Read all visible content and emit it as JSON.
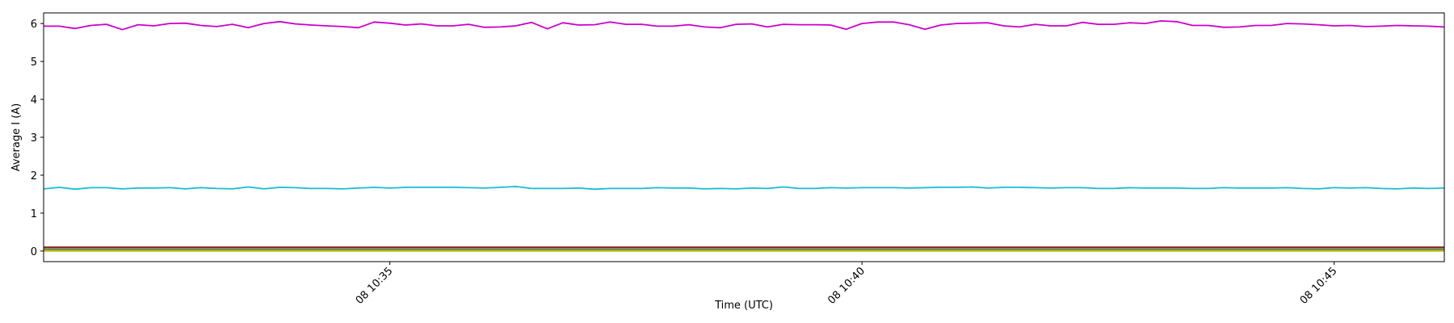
{
  "chart_data": {
    "type": "line",
    "title": "",
    "xlabel": "Time (UTC)",
    "ylabel": "Average I (A)",
    "xlim": [
      "08 10:31:20",
      "08 10:46:10"
    ],
    "ylim": [
      -0.28,
      6.28
    ],
    "grid": false,
    "legend": "none",
    "x": [
      "08 10:31:20",
      "08 10:31:30",
      "08 10:31:40",
      "08 10:31:50",
      "08 10:32:00",
      "08 10:32:10",
      "08 10:32:20",
      "08 10:32:30",
      "08 10:32:40",
      "08 10:32:50",
      "08 10:33:00",
      "08 10:33:10",
      "08 10:33:20",
      "08 10:33:30",
      "08 10:33:40",
      "08 10:33:50",
      "08 10:34:00",
      "08 10:34:10",
      "08 10:34:20",
      "08 10:34:30",
      "08 10:34:40",
      "08 10:34:50",
      "08 10:35:00",
      "08 10:35:10",
      "08 10:35:20",
      "08 10:35:30",
      "08 10:35:40",
      "08 10:35:50",
      "08 10:36:00",
      "08 10:36:10",
      "08 10:36:20",
      "08 10:36:30",
      "08 10:36:40",
      "08 10:36:50",
      "08 10:37:00",
      "08 10:37:10",
      "08 10:37:20",
      "08 10:37:30",
      "08 10:37:40",
      "08 10:37:50",
      "08 10:38:00",
      "08 10:38:10",
      "08 10:38:20",
      "08 10:38:30",
      "08 10:38:40",
      "08 10:38:50",
      "08 10:39:00",
      "08 10:39:10",
      "08 10:39:20",
      "08 10:39:30",
      "08 10:39:40",
      "08 10:39:50",
      "08 10:40:00",
      "08 10:40:10",
      "08 10:40:20",
      "08 10:40:30",
      "08 10:40:40",
      "08 10:40:50",
      "08 10:41:00",
      "08 10:41:10",
      "08 10:41:20",
      "08 10:41:30",
      "08 10:41:40",
      "08 10:41:50",
      "08 10:42:00",
      "08 10:42:10",
      "08 10:42:20",
      "08 10:42:30",
      "08 10:42:40",
      "08 10:42:50",
      "08 10:43:00",
      "08 10:43:10",
      "08 10:43:20",
      "08 10:43:30",
      "08 10:43:40",
      "08 10:43:50",
      "08 10:44:00",
      "08 10:44:10",
      "08 10:44:20",
      "08 10:44:30",
      "08 10:44:40",
      "08 10:44:50",
      "08 10:45:00",
      "08 10:45:10",
      "08 10:45:20",
      "08 10:45:30",
      "08 10:45:40",
      "08 10:45:50",
      "08 10:46:00",
      "08 10:46:10"
    ],
    "xticks": [
      {
        "label": "08 10:35",
        "value": "08 10:35:00"
      },
      {
        "label": "08 10:40",
        "value": "08 10:40:00"
      },
      {
        "label": "08 10:45",
        "value": "08 10:45:00"
      }
    ],
    "yticks": [
      0,
      1,
      2,
      3,
      4,
      5,
      6
    ],
    "series": [
      {
        "color": "#cc00cc",
        "values": [
          5.93,
          5.93,
          5.87,
          5.95,
          5.98,
          5.84,
          5.97,
          5.94,
          6.0,
          6.01,
          5.95,
          5.92,
          5.98,
          5.89,
          6.0,
          6.05,
          5.99,
          5.96,
          5.94,
          5.92,
          5.89,
          6.04,
          6.01,
          5.96,
          5.99,
          5.94,
          5.94,
          5.98,
          5.9,
          5.91,
          5.94,
          6.03,
          5.86,
          6.02,
          5.96,
          5.97,
          6.04,
          5.98,
          5.98,
          5.93,
          5.93,
          5.97,
          5.91,
          5.89,
          5.98,
          5.99,
          5.91,
          5.98,
          5.97,
          5.97,
          5.96,
          5.85,
          6.0,
          6.04,
          6.04,
          5.97,
          5.85,
          5.96,
          6.0,
          6.01,
          6.02,
          5.94,
          5.91,
          5.98,
          5.94,
          5.94,
          6.03,
          5.98,
          5.98,
          6.02,
          6.0,
          6.07,
          6.05,
          5.95,
          5.95,
          5.9,
          5.91,
          5.95,
          5.95,
          6.0,
          5.99,
          5.97,
          5.94,
          5.95,
          5.92,
          5.93,
          5.95,
          5.94,
          5.93,
          5.91
        ]
      },
      {
        "color": "#17becf",
        "values": [
          1.64,
          1.68,
          1.63,
          1.67,
          1.67,
          1.64,
          1.66,
          1.66,
          1.67,
          1.64,
          1.67,
          1.65,
          1.64,
          1.69,
          1.64,
          1.68,
          1.67,
          1.65,
          1.65,
          1.64,
          1.66,
          1.68,
          1.66,
          1.68,
          1.68,
          1.68,
          1.68,
          1.67,
          1.66,
          1.68,
          1.7,
          1.65,
          1.65,
          1.65,
          1.66,
          1.63,
          1.65,
          1.65,
          1.65,
          1.67,
          1.66,
          1.66,
          1.64,
          1.65,
          1.64,
          1.66,
          1.65,
          1.69,
          1.65,
          1.65,
          1.67,
          1.66,
          1.67,
          1.67,
          1.67,
          1.66,
          1.67,
          1.68,
          1.68,
          1.69,
          1.66,
          1.68,
          1.68,
          1.67,
          1.66,
          1.67,
          1.67,
          1.65,
          1.65,
          1.67,
          1.66,
          1.66,
          1.66,
          1.65,
          1.65,
          1.67,
          1.66,
          1.66,
          1.66,
          1.67,
          1.65,
          1.64,
          1.67,
          1.66,
          1.67,
          1.65,
          1.64,
          1.66,
          1.65,
          1.66
        ]
      },
      {
        "color": "#8c1a1a",
        "values": [
          0.1,
          0.1,
          0.1,
          0.1,
          0.1,
          0.1,
          0.1,
          0.1,
          0.1,
          0.1,
          0.1,
          0.1,
          0.1,
          0.1,
          0.1,
          0.1,
          0.1,
          0.1,
          0.1,
          0.1,
          0.1,
          0.1,
          0.1,
          0.1,
          0.1,
          0.1,
          0.1,
          0.1,
          0.1,
          0.1,
          0.1,
          0.1,
          0.1,
          0.1,
          0.1,
          0.1,
          0.1,
          0.1,
          0.1,
          0.1,
          0.1,
          0.1,
          0.1,
          0.1,
          0.1,
          0.1,
          0.1,
          0.1,
          0.1,
          0.1,
          0.1,
          0.1,
          0.1,
          0.1,
          0.1,
          0.1,
          0.1,
          0.1,
          0.1,
          0.1,
          0.1,
          0.1,
          0.1,
          0.1,
          0.1,
          0.1,
          0.1,
          0.1,
          0.1,
          0.1,
          0.1,
          0.1,
          0.1,
          0.1,
          0.1,
          0.1,
          0.1,
          0.1,
          0.1,
          0.1,
          0.1,
          0.1,
          0.1,
          0.1,
          0.1,
          0.1,
          0.1,
          0.1,
          0.1,
          0.1
        ]
      },
      {
        "color": "#7f7f7f",
        "values": [
          0.06,
          0.06,
          0.06,
          0.06,
          0.06,
          0.06,
          0.06,
          0.06,
          0.06,
          0.06,
          0.06,
          0.06,
          0.06,
          0.06,
          0.06,
          0.06,
          0.06,
          0.06,
          0.06,
          0.06,
          0.06,
          0.06,
          0.06,
          0.06,
          0.06,
          0.06,
          0.06,
          0.06,
          0.06,
          0.06,
          0.06,
          0.06,
          0.06,
          0.06,
          0.06,
          0.06,
          0.06,
          0.06,
          0.06,
          0.06,
          0.06,
          0.06,
          0.06,
          0.06,
          0.06,
          0.06,
          0.06,
          0.06,
          0.06,
          0.06,
          0.06,
          0.06,
          0.06,
          0.06,
          0.06,
          0.06,
          0.06,
          0.06,
          0.06,
          0.06,
          0.06,
          0.06,
          0.06,
          0.06,
          0.06,
          0.06,
          0.06,
          0.06,
          0.06,
          0.06,
          0.06,
          0.06,
          0.06,
          0.06,
          0.06,
          0.06,
          0.06,
          0.06,
          0.06,
          0.06,
          0.06,
          0.06,
          0.06,
          0.06,
          0.06,
          0.06,
          0.06,
          0.06,
          0.06,
          0.06
        ]
      },
      {
        "color": "#2ca02c",
        "values": [
          0.03,
          0.03,
          0.03,
          0.03,
          0.03,
          0.03,
          0.03,
          0.03,
          0.03,
          0.03,
          0.03,
          0.03,
          0.03,
          0.03,
          0.03,
          0.03,
          0.03,
          0.03,
          0.03,
          0.03,
          0.03,
          0.03,
          0.03,
          0.03,
          0.03,
          0.03,
          0.03,
          0.03,
          0.03,
          0.03,
          0.03,
          0.03,
          0.03,
          0.03,
          0.03,
          0.03,
          0.03,
          0.03,
          0.03,
          0.03,
          0.03,
          0.03,
          0.03,
          0.03,
          0.03,
          0.03,
          0.03,
          0.03,
          0.03,
          0.03,
          0.03,
          0.03,
          0.03,
          0.03,
          0.03,
          0.03,
          0.03,
          0.03,
          0.03,
          0.03,
          0.03,
          0.03,
          0.03,
          0.03,
          0.03,
          0.03,
          0.03,
          0.03,
          0.03,
          0.03,
          0.03,
          0.03,
          0.03,
          0.03,
          0.03,
          0.03,
          0.03,
          0.03,
          0.03,
          0.03,
          0.03,
          0.03,
          0.03,
          0.03,
          0.03,
          0.03,
          0.03,
          0.03,
          0.03,
          0.03
        ]
      },
      {
        "color": "#ff7f0e",
        "values": [
          0.01,
          0.01,
          0.01,
          0.01,
          0.01,
          0.01,
          0.01,
          0.01,
          0.01,
          0.01,
          0.01,
          0.01,
          0.01,
          0.01,
          0.01,
          0.01,
          0.01,
          0.01,
          0.01,
          0.01,
          0.01,
          0.01,
          0.01,
          0.01,
          0.01,
          0.01,
          0.01,
          0.01,
          0.01,
          0.01,
          0.01,
          0.01,
          0.01,
          0.01,
          0.01,
          0.01,
          0.01,
          0.01,
          0.01,
          0.01,
          0.01,
          0.01,
          0.01,
          0.01,
          0.01,
          0.01,
          0.01,
          0.01,
          0.01,
          0.01,
          0.01,
          0.01,
          0.01,
          0.01,
          0.01,
          0.01,
          0.01,
          0.01,
          0.01,
          0.01,
          0.01,
          0.01,
          0.01,
          0.01,
          0.01,
          0.01,
          0.01,
          0.01,
          0.01,
          0.01,
          0.01,
          0.01,
          0.01,
          0.01,
          0.01,
          0.01,
          0.01,
          0.01,
          0.01,
          0.01,
          0.01,
          0.01,
          0.01,
          0.01,
          0.01,
          0.01,
          0.01,
          0.01,
          0.01,
          0.01
        ]
      },
      {
        "color": "#bcbd22",
        "values": [
          0.0,
          0.0,
          0.0,
          0.0,
          0.0,
          0.0,
          0.0,
          0.0,
          0.0,
          0.0,
          0.0,
          0.0,
          0.0,
          0.0,
          0.0,
          0.0,
          0.0,
          0.0,
          0.0,
          0.0,
          0.0,
          0.0,
          0.0,
          0.0,
          0.0,
          0.0,
          0.0,
          0.0,
          0.0,
          0.0,
          0.0,
          0.0,
          0.0,
          0.0,
          0.0,
          0.0,
          0.0,
          0.0,
          0.0,
          0.0,
          0.0,
          0.0,
          0.0,
          0.0,
          0.0,
          0.0,
          0.0,
          0.0,
          0.0,
          0.0,
          0.0,
          0.0,
          0.0,
          0.0,
          0.0,
          0.0,
          0.0,
          0.0,
          0.0,
          0.0,
          0.0,
          0.0,
          0.0,
          0.0,
          0.0,
          0.0,
          0.0,
          0.0,
          0.0,
          0.0,
          0.0,
          0.0,
          0.0,
          0.0,
          0.0,
          0.0,
          0.0,
          0.0,
          0.0,
          0.0,
          0.0,
          0.0,
          0.0,
          0.0,
          0.0,
          0.0,
          0.0,
          0.0,
          0.0,
          0.0
        ]
      }
    ]
  }
}
